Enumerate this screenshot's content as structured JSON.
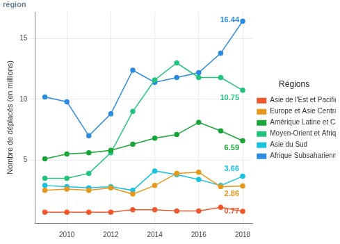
{
  "chart_data": {
    "type": "line",
    "title": "région",
    "y_label": "Nombre de déplacés (en millions)",
    "legend_title": "Régions",
    "legend": "right",
    "grid": true,
    "marker": "circle",
    "x": [
      2009,
      2010,
      2011,
      2012,
      2013,
      2014,
      2015,
      2016,
      2017,
      2018
    ],
    "xlim": [
      2008.55,
      2018.45
    ],
    "xticks": [
      2010,
      2012,
      2014,
      2016,
      2018
    ],
    "ylim": [
      -0.2,
      17.2
    ],
    "yticks": [
      5,
      10,
      15
    ],
    "series": [
      {
        "name": "Asie de l'Est et Pacifique",
        "color": "#f0582c",
        "values": [
          0.7,
          0.7,
          0.7,
          0.7,
          0.9,
          0.9,
          0.8,
          0.8,
          1.1,
          0.77
        ],
        "value_labels": [
          null,
          null,
          null,
          null,
          null,
          null,
          null,
          null,
          null,
          "0.77"
        ]
      },
      {
        "name": "Europe et Asie Centrale",
        "color": "#e6981c",
        "values": [
          2.5,
          2.6,
          2.5,
          2.7,
          2.2,
          2.9,
          3.9,
          4.0,
          2.8,
          2.86
        ],
        "value_labels": [
          null,
          null,
          null,
          null,
          null,
          null,
          null,
          null,
          null,
          "2.86"
        ]
      },
      {
        "name": "Amérique Latine et Caraïbes",
        "color": "#17a637",
        "values": [
          5.1,
          5.5,
          5.6,
          5.8,
          6.3,
          6.8,
          7.1,
          8.1,
          7.4,
          6.59
        ],
        "value_labels": [
          null,
          null,
          null,
          null,
          null,
          null,
          null,
          null,
          null,
          "6.59"
        ]
      },
      {
        "name": "Moyen-Orient et Afrique du Nord",
        "color": "#22c47c",
        "values": [
          3.5,
          3.5,
          3.9,
          5.6,
          9.0,
          11.6,
          13.0,
          11.8,
          11.8,
          10.75
        ],
        "value_labels": [
          null,
          null,
          null,
          null,
          null,
          null,
          null,
          null,
          null,
          "10.75"
        ]
      },
      {
        "name": "Asie du Sud",
        "color": "#19c3e0",
        "values": [
          2.9,
          2.8,
          2.7,
          2.8,
          2.5,
          4.1,
          3.8,
          3.4,
          2.9,
          3.66
        ],
        "value_labels": [
          null,
          null,
          null,
          null,
          null,
          null,
          null,
          null,
          null,
          "3.66"
        ]
      },
      {
        "name": "Afrique Subsaharienne",
        "color": "#2b8be0",
        "values": [
          10.2,
          9.8,
          7.0,
          8.8,
          12.4,
          11.4,
          11.8,
          12.2,
          13.8,
          16.44
        ],
        "value_labels": [
          null,
          null,
          null,
          null,
          null,
          null,
          null,
          null,
          null,
          "16.44"
        ]
      }
    ]
  }
}
